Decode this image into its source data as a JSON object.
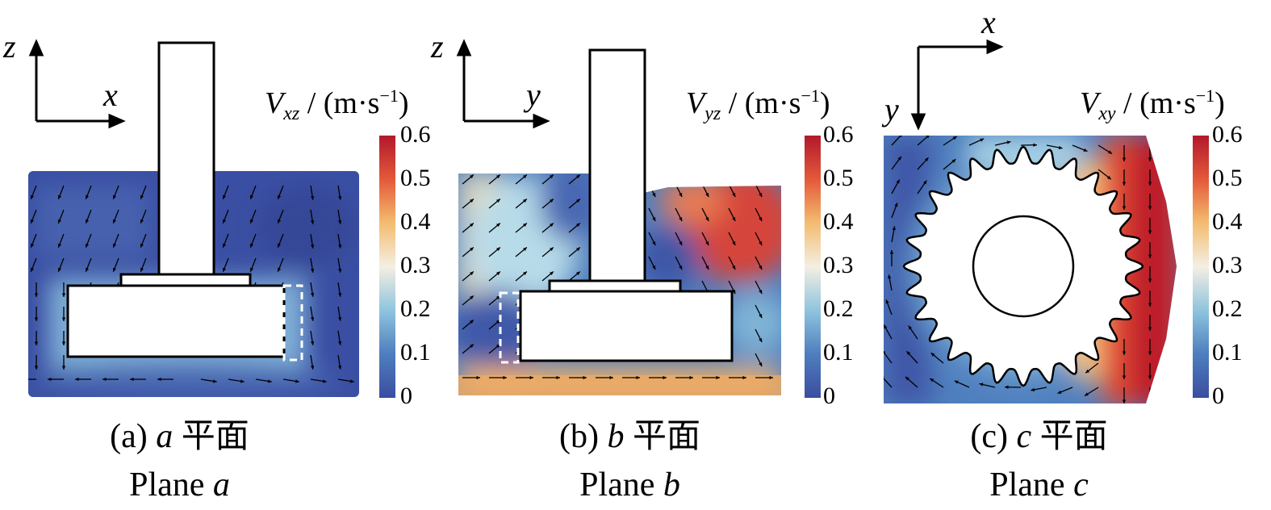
{
  "colorbar": {
    "ticks": [
      "0.6",
      "0.5",
      "0.4",
      "0.3",
      "0.2",
      "0.1",
      "0"
    ],
    "range": [
      0,
      0.6
    ],
    "colors": [
      "#3b4da0",
      "#4f7fbe",
      "#8ec3de",
      "#f4efe2",
      "#f3bb6f",
      "#e45b3b",
      "#b2182b"
    ]
  },
  "panels": [
    {
      "id": "a",
      "axis_horizontal": "x",
      "axis_vertical": "z",
      "cb_var": "V",
      "cb_sub": "xz",
      "cb_unit_open": " / (m·s",
      "cb_unit_sup": "−1",
      "cb_unit_close": ")",
      "caption_prefix": "(a) ",
      "caption_var": "a",
      "caption_cn": " 平面",
      "caption_en_prefix": "Plane ",
      "caption_en_var": "a"
    },
    {
      "id": "b",
      "axis_horizontal": "y",
      "axis_vertical": "z",
      "cb_var": "V",
      "cb_sub": "yz",
      "cb_unit_open": " / (m·s",
      "cb_unit_sup": "−1",
      "cb_unit_close": ")",
      "caption_prefix": "(b) ",
      "caption_var": "b",
      "caption_cn": " 平面",
      "caption_en_prefix": "Plane ",
      "caption_en_var": "b"
    },
    {
      "id": "c",
      "axis_horizontal": "x",
      "axis_vertical": "y",
      "cb_var": "V",
      "cb_sub": "xy",
      "cb_unit_open": " / (m·s",
      "cb_unit_sup": "−1",
      "cb_unit_close": ")",
      "caption_prefix": "(c) ",
      "caption_var": "c",
      "caption_cn": " 平面",
      "caption_en_prefix": "Plane ",
      "caption_en_var": "c"
    }
  ],
  "chart_data": {
    "type": "heatmap",
    "quantity": "velocity magnitude with vector arrows",
    "value_range": [
      0,
      0.6
    ],
    "panels": [
      {
        "plane": "a",
        "typical_values": {
          "bulk": 0.05,
          "under_disk_gap": 0.15
        }
      },
      {
        "plane": "b",
        "typical_values": {
          "left_upper": 0.28,
          "right_upper": 0.55,
          "bottom_layer": 0.42,
          "center": 0.08
        }
      },
      {
        "plane": "c",
        "typical_values": {
          "left_outer": 0.1,
          "ring_near_gear": 0.22,
          "right_edge": 0.6
        }
      }
    ]
  }
}
